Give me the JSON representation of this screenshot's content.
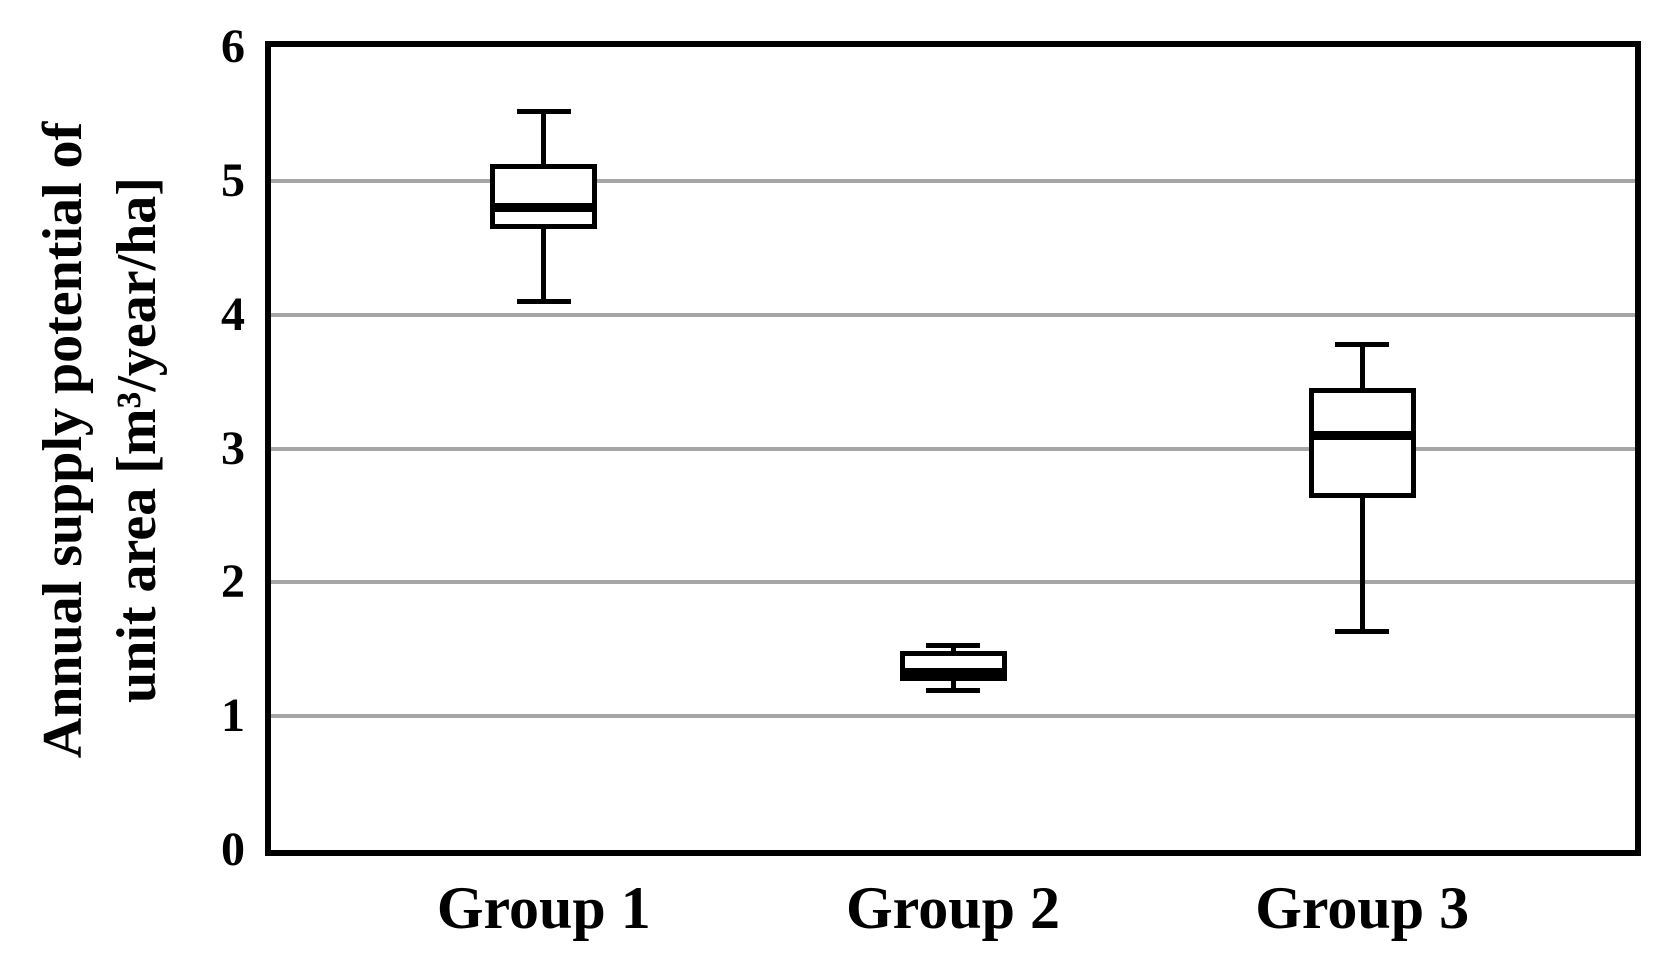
{
  "figure": {
    "background": "#ffffff"
  },
  "chart_data": {
    "type": "boxplot",
    "title": "",
    "ylabel": "Annual supply potential of unit area [m³/year/ha]",
    "ylabel_lines": [
      "Annual supply potential of",
      "unit area [m³/year/ha]"
    ],
    "xlabel": "",
    "categories": [
      "Group 1",
      "Group 2",
      "Group 3"
    ],
    "ylim": [
      0,
      6
    ],
    "yticks": [
      0,
      1,
      2,
      3,
      4,
      5,
      6
    ],
    "gridline_values": [
      1,
      2,
      3,
      4,
      5
    ],
    "grid_on": true,
    "legend_position": "none",
    "series": [
      {
        "name": "Group 1",
        "min": 4.1,
        "q1": 4.66,
        "median": 4.8,
        "q3": 5.11,
        "max": 5.52
      },
      {
        "name": "Group 2",
        "min": 1.19,
        "q1": 1.28,
        "median": 1.33,
        "q3": 1.47,
        "max": 1.53
      },
      {
        "name": "Group 3",
        "min": 1.63,
        "q1": 2.65,
        "median": 3.1,
        "q3": 3.43,
        "max": 3.78
      }
    ],
    "colors": {
      "line": "#000000",
      "box_fill": "#ffffff",
      "grid": "#a6a6a6",
      "text": "#000000"
    }
  }
}
